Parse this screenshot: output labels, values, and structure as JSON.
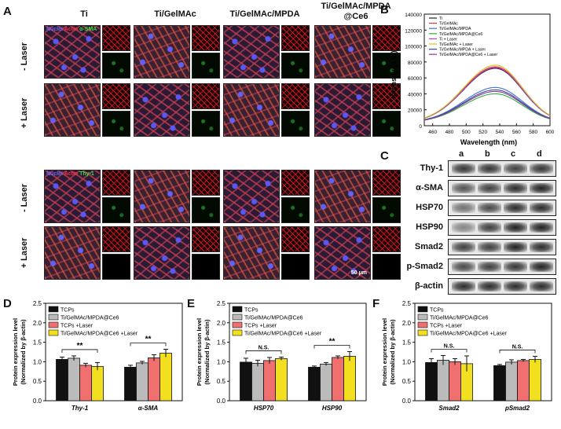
{
  "panels": {
    "a": "A",
    "b": "B",
    "c": "C",
    "d": "D",
    "e": "E",
    "f": "F"
  },
  "panelA": {
    "columns": [
      "Ti",
      "Ti/GelMAc",
      "Ti/GelMAc/MPDA",
      "Ti/GelMAc/MPDA\n@Ce6"
    ],
    "col_line1": [
      "Ti",
      "Ti/GelMAc",
      "Ti/GelMAc/MPDA",
      "Ti/GelMAc/MPDA"
    ],
    "col_line2": [
      "",
      "",
      "",
      "@Ce6"
    ],
    "rows": [
      "- Laser",
      "+ Laser",
      "- Laser",
      "+ Laser"
    ],
    "stain_top": {
      "nuclei": "Nuclei",
      "actin": "Actin",
      "marker": "α-SMA"
    },
    "stain_bottom": {
      "nuclei": "Nuclei",
      "actin": "Actin",
      "marker": "Thy-1"
    },
    "scalebar": "50 μm"
  },
  "panelB": {
    "ylabel": "Intensity (a.u.)",
    "xlabel": "Wavelength (nm)",
    "legend": [
      "Ti",
      "Ti/GelMAc",
      "Ti/GelMAc/MPDA",
      "Ti/GelMAc/MPDA@Ce6",
      "Ti + Laser",
      "Ti/GelMAc + Laser",
      "Ti/GelMAc/MPDA + Laser",
      "Ti/GelMAc/MPDA@Ce6 + Laser"
    ],
    "colors": [
      "#222222",
      "#e8322b",
      "#3b6fd8",
      "#2fae3f",
      "#c040c0",
      "#d4c020",
      "#4040a0",
      "#8a3a8a"
    ]
  },
  "panelC": {
    "lanes": [
      "a",
      "b",
      "c",
      "d"
    ],
    "proteins": [
      "Thy-1",
      "α-SMA",
      "HSP70",
      "HSP90",
      "Smad2",
      "p-Smad2",
      "β-actin"
    ]
  },
  "legendBar": {
    "labels": [
      "TCPs",
      "Ti/GelMAc/MPDA@Ce6",
      "TCPs +Laser",
      "Ti/GelMAc/MPDA@Ce6 +Laser"
    ],
    "colors": [
      "#111111",
      "#bbbbbb",
      "#f07070",
      "#f2e020"
    ]
  },
  "chart_data": [
    {
      "type": "line",
      "title": "",
      "xlabel": "Wavelength (nm)",
      "ylabel": "Intensity (a.u.)",
      "xlim": [
        450,
        600
      ],
      "ylim": [
        0,
        140000
      ],
      "xticks": [
        460,
        480,
        500,
        520,
        540,
        560,
        580,
        600
      ],
      "yticks": [
        0,
        20000,
        40000,
        60000,
        80000,
        100000,
        120000,
        140000
      ],
      "peak_x": 535,
      "series": [
        {
          "name": "Ti",
          "peak": 68000
        },
        {
          "name": "Ti/GelMAc",
          "peak": 70000
        },
        {
          "name": "Ti/GelMAc/MPDA",
          "peak": 44000
        },
        {
          "name": "Ti/GelMAc/MPDA@Ce6",
          "peak": 36000
        },
        {
          "name": "Ti + Laser",
          "peak": 69000
        },
        {
          "name": "Ti/GelMAc + Laser",
          "peak": 72000
        },
        {
          "name": "Ti/GelMAc/MPDA + Laser",
          "peak": 41000
        },
        {
          "name": "Ti/GelMAc/MPDA@Ce6 + Laser",
          "peak": 39000
        }
      ]
    },
    {
      "type": "bar",
      "ylabel": "Protein expression level\n(Normalized by β-actin)",
      "categories": [
        "Thy-1",
        "α-SMA"
      ],
      "ylim": [
        0,
        2.5
      ],
      "yticks": [
        "0.0",
        "0.5",
        "1.0",
        "1.5",
        "2.0",
        "2.5"
      ],
      "series": [
        {
          "name": "TCPs",
          "values": [
            1.06,
            0.86
          ],
          "err": [
            0.06,
            0.05
          ]
        },
        {
          "name": "Ti/GelMAc/MPDA@Ce6",
          "values": [
            1.09,
            0.97
          ],
          "err": [
            0.06,
            0.04
          ]
        },
        {
          "name": "TCPs +Laser",
          "values": [
            0.91,
            1.1
          ],
          "err": [
            0.05,
            0.08
          ]
        },
        {
          "name": "Ti/GelMAc/MPDA@Ce6 +Laser",
          "values": [
            0.88,
            1.22
          ],
          "err": [
            0.1,
            0.1
          ]
        }
      ],
      "significance": [
        "**",
        "**"
      ]
    },
    {
      "type": "bar",
      "ylabel": "Protein expression level\n(Normalized by β-actin)",
      "categories": [
        "HSP70",
        "HSP90"
      ],
      "ylim": [
        0,
        2.5
      ],
      "yticks": [
        "0.0",
        "0.5",
        "1.0",
        "1.5",
        "2.0",
        "2.5"
      ],
      "series": [
        {
          "name": "TCPs",
          "values": [
            0.99,
            0.86
          ],
          "err": [
            0.1,
            0.03
          ]
        },
        {
          "name": "Ti/GelMAc/MPDA@Ce6",
          "values": [
            0.96,
            0.94
          ],
          "err": [
            0.08,
            0.04
          ]
        },
        {
          "name": "TCPs +Laser",
          "values": [
            1.03,
            1.11
          ],
          "err": [
            0.08,
            0.04
          ]
        },
        {
          "name": "Ti/GelMAc/MPDA@Ce6 +Laser",
          "values": [
            1.08,
            1.14
          ],
          "err": [
            0.04,
            0.12
          ]
        }
      ],
      "significance": [
        "N.S.",
        "**"
      ]
    },
    {
      "type": "bar",
      "ylabel": "Protein expression level\n(Normalized by β-actin)",
      "categories": [
        "Smad2",
        "pSmad2"
      ],
      "ylim": [
        0,
        2.5
      ],
      "yticks": [
        "0.0",
        "0.5",
        "1.0",
        "1.5",
        "2.0",
        "2.5"
      ],
      "series": [
        {
          "name": "TCPs",
          "values": [
            0.98,
            0.9
          ],
          "err": [
            0.1,
            0.03
          ]
        },
        {
          "name": "Ti/GelMAc/MPDA@Ce6",
          "values": [
            1.04,
            0.99
          ],
          "err": [
            0.12,
            0.06
          ]
        },
        {
          "name": "TCPs +Laser",
          "values": [
            1.0,
            1.03
          ],
          "err": [
            0.08,
            0.03
          ]
        },
        {
          "name": "Ti/GelMAc/MPDA@Ce6 +Laser",
          "values": [
            0.95,
            1.06
          ],
          "err": [
            0.2,
            0.08
          ]
        }
      ],
      "significance": [
        "N.S.",
        "N.S."
      ]
    }
  ]
}
